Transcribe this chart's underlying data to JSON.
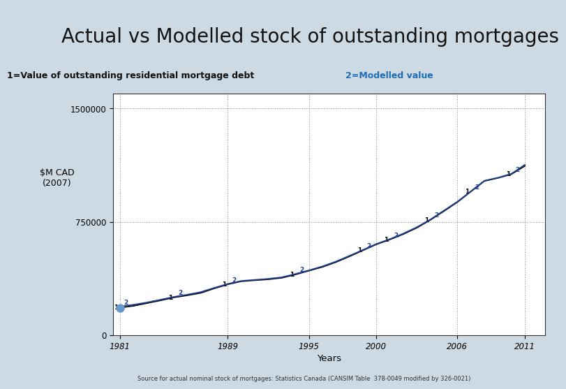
{
  "title": "Actual vs Modelled stock of outstanding mortgages",
  "title_bg_color": "#cdd9e3",
  "plot_bg_color": "#ffffff",
  "legend1_text": "1=Value of outstanding residential mortgage debt",
  "legend2_text": "2=Modelled value",
  "legend1_color": "#111111",
  "legend2_color": "#1f6eb5",
  "ylabel": "$M CAD\n(2007)",
  "xlabel": "Years",
  "source_text": "Source for actual nominal stock of mortgages: Statistics Canada (CANSIM Table  378-0049 modified by 326-0021)",
  "yticks": [
    0,
    750000,
    1500000
  ],
  "xticks": [
    1981,
    1989,
    1995,
    2000,
    2006,
    2011
  ],
  "xlim": [
    1980.5,
    2012.5
  ],
  "ylim": [
    0,
    1600000
  ],
  "actual_color": "#000000",
  "modelled_color": "#1f3f8f",
  "start_dot_color": "#6699cc",
  "years": [
    1981,
    1982,
    1983,
    1984,
    1985,
    1986,
    1987,
    1988,
    1989,
    1990,
    1991,
    1992,
    1993,
    1994,
    1995,
    1996,
    1997,
    1998,
    1999,
    2000,
    2001,
    2002,
    2003,
    2004,
    2005,
    2006,
    2007,
    2008,
    2009,
    2010,
    2011
  ],
  "actual": [
    180000,
    192000,
    210000,
    228000,
    248000,
    262000,
    278000,
    308000,
    335000,
    355000,
    362000,
    368000,
    378000,
    400000,
    425000,
    450000,
    482000,
    520000,
    560000,
    600000,
    632000,
    668000,
    710000,
    762000,
    820000,
    880000,
    950000,
    1020000,
    1040000,
    1065000,
    1120000
  ],
  "modelled": [
    188000,
    200000,
    215000,
    233000,
    252000,
    267000,
    284000,
    312000,
    338000,
    358000,
    365000,
    372000,
    382000,
    404000,
    428000,
    454000,
    486000,
    524000,
    563000,
    603000,
    635000,
    672000,
    714000,
    765000,
    824000,
    883000,
    952000,
    1022000,
    1042000,
    1068000,
    1128000
  ],
  "label_indices": [
    0,
    4,
    8,
    13,
    18,
    20,
    23,
    26,
    29
  ]
}
